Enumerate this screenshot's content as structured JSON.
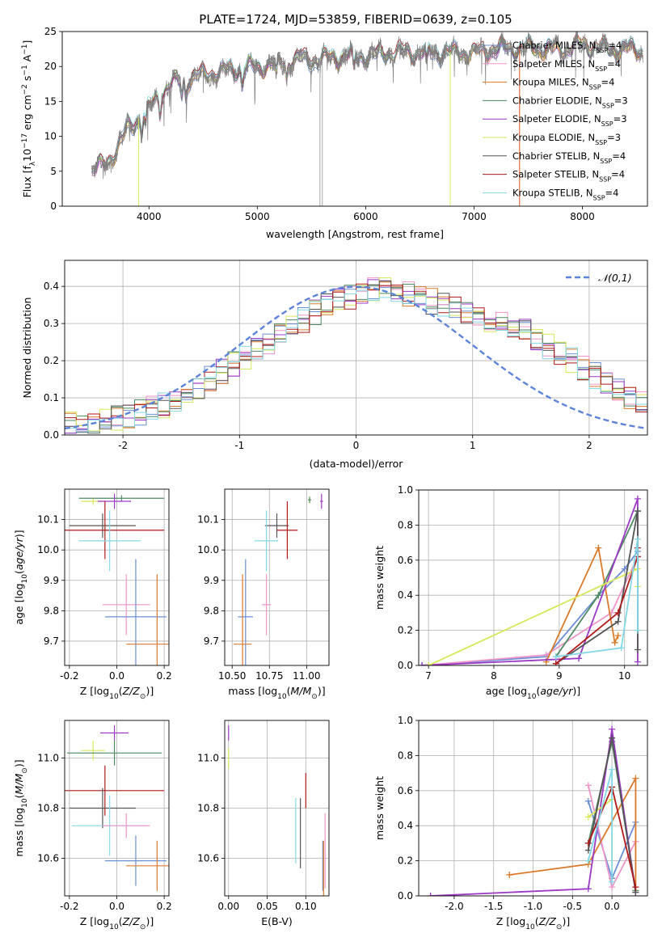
{
  "figure_title": "PLATE=1724, MJD=53859, FIBERID=0639, z=0.105",
  "colors": {
    "chabrier_miles": "#6b8fd6",
    "salpeter_miles": "#ef95c8",
    "kroupa_miles": "#d97a2b",
    "chabrier_elodie": "#4e8a62",
    "salpeter_elodie": "#9b38c4",
    "kroupa_elodie": "#d7e85a",
    "chabrier_stelib": "#555555",
    "salpeter_stelib": "#b01a1a",
    "kroupa_stelib": "#82d8e4",
    "grid": "#b0b0b0",
    "normal_curve": "#5b84d8"
  },
  "chart_data": [
    {
      "id": "spectrum",
      "type": "line",
      "title": "PLATE=1724, MJD=53859, FIBERID=0639, z=0.105",
      "xlabel": "wavelength [Angstrom, rest frame]",
      "ylabel": "Flux [f_λ10^-17 erg cm^-2 s^-1 A^-1]",
      "xlim": [
        3200,
        8600
      ],
      "ylim": [
        0,
        25
      ],
      "xticks": [
        4000,
        5000,
        6000,
        7000,
        8000
      ],
      "yticks": [
        0,
        5,
        10,
        15,
        20,
        25
      ],
      "grid": false,
      "legend_position": "upper-right",
      "data_range": [
        3470,
        8560
      ],
      "continuum": {
        "x": [
          3470,
          3600,
          3700,
          3800,
          3900,
          4000,
          4100,
          4200,
          4300,
          4400,
          4600,
          4800,
          5000,
          5200,
          5400,
          5600,
          5800,
          6000,
          6200,
          6400,
          6600,
          6800,
          7000,
          7200,
          7400,
          7600,
          7800,
          8000,
          8200,
          8400,
          8560
        ],
        "y": [
          5,
          6,
          8,
          11,
          12.5,
          14,
          16,
          17.5,
          18,
          18.5,
          19,
          19.5,
          20,
          20.5,
          21,
          21,
          21.5,
          21.5,
          22,
          22,
          22,
          22,
          22,
          22.5,
          22.5,
          22.5,
          22.5,
          23,
          22.5,
          22.5,
          22
        ]
      },
      "series": [
        {
          "name": "Chabrier MILES, N_SSP=4",
          "color": "#6b8fd6"
        },
        {
          "name": "Salpeter MILES, N_SSP=4",
          "color": "#ef95c8"
        },
        {
          "name": "Kroupa MILES, N_SSP=4",
          "color": "#d97a2b"
        },
        {
          "name": "Chabrier ELODIE, N_SSP=3",
          "color": "#4e8a62"
        },
        {
          "name": "Salpeter ELODIE, N_SSP=3",
          "color": "#9b38c4"
        },
        {
          "name": "Kroupa ELODIE, N_SSP=3",
          "color": "#d7e85a"
        },
        {
          "name": "Chabrier STELIB, N_SSP=4",
          "color": "#555555"
        },
        {
          "name": "Salpeter STELIB, N_SSP=4",
          "color": "#b01a1a"
        },
        {
          "name": "Kroupa STELIB, N_SSP=4",
          "color": "#82d8e4"
        }
      ],
      "vertical_spikes": [
        {
          "x": 5578,
          "color": "#aaaaaa"
        },
        {
          "x": 5600,
          "color": "#aaaaaa"
        },
        {
          "x": 6780,
          "color": "#d7e85a"
        },
        {
          "x": 7420,
          "color": "#d9531a"
        },
        {
          "x": 3905,
          "color": "#d7e85a"
        }
      ]
    },
    {
      "id": "residual_histogram",
      "type": "histogram",
      "xlabel": "(data-model)/error",
      "ylabel": "Normed distribution",
      "xlim": [
        -2.5,
        2.5
      ],
      "ylim": [
        0,
        0.47
      ],
      "xticks": [
        -2,
        -1,
        0,
        1,
        2
      ],
      "yticks": [
        0.0,
        0.1,
        0.2,
        0.3,
        0.4
      ],
      "grid": true,
      "legend_position": "upper-right",
      "legend": [
        "𝒩(0,1)"
      ],
      "bin_width": 0.1,
      "bin_start": -2.5,
      "base_density": [
        0.03,
        0.03,
        0.035,
        0.04,
        0.045,
        0.05,
        0.06,
        0.07,
        0.08,
        0.09,
        0.11,
        0.13,
        0.15,
        0.17,
        0.19,
        0.21,
        0.23,
        0.25,
        0.27,
        0.29,
        0.31,
        0.33,
        0.35,
        0.36,
        0.37,
        0.38,
        0.39,
        0.39,
        0.39,
        0.38,
        0.37,
        0.36,
        0.35,
        0.34,
        0.33,
        0.32,
        0.31,
        0.3,
        0.29,
        0.28,
        0.26,
        0.24,
        0.22,
        0.2,
        0.18,
        0.16,
        0.14,
        0.12,
        0.1,
        0.09
      ]
    },
    {
      "id": "age_vs_Z",
      "type": "scatter-errorbar",
      "xlabel": "Z [log10(Z/Z⊙)]",
      "ylabel": "age [log10(age/yr)]",
      "xlim": [
        -0.22,
        0.22
      ],
      "ylim": [
        9.62,
        10.2
      ],
      "xticks": [
        -0.2,
        0.0,
        0.2
      ],
      "yticks": [
        9.7,
        9.8,
        9.9,
        10.0,
        10.1
      ],
      "grid": true,
      "points": [
        {
          "model": "kroupa_elodie",
          "x": -0.1,
          "xerr": 0.05,
          "y": 10.16,
          "yerr": 0.012
        },
        {
          "model": "chabrier_elodie",
          "x": 0.02,
          "xerr": 0.18,
          "y": 10.17,
          "yerr": 0.01
        },
        {
          "model": "salpeter_elodie",
          "x": -0.01,
          "xerr": 0.07,
          "y": 10.16,
          "yerr": 0.025
        },
        {
          "model": "chabrier_stelib",
          "x": -0.06,
          "xerr": 0.14,
          "y": 10.08,
          "yerr": 0.04
        },
        {
          "model": "salpeter_stelib",
          "x": -0.05,
          "xerr": 0.25,
          "y": 10.065,
          "yerr": 0.095
        },
        {
          "model": "kroupa_stelib",
          "x": -0.03,
          "xerr": 0.13,
          "y": 10.03,
          "yerr": 0.1
        },
        {
          "model": "salpeter_miles",
          "x": 0.04,
          "xerr": 0.1,
          "y": 9.82,
          "yerr": 0.1
        },
        {
          "model": "chabrier_miles",
          "x": 0.08,
          "xerr": 0.13,
          "y": 9.78,
          "yerr": 0.19
        },
        {
          "model": "kroupa_miles",
          "x": 0.17,
          "xerr": 0.13,
          "y": 9.69,
          "yerr": 0.23
        }
      ]
    },
    {
      "id": "age_vs_mass",
      "type": "scatter-errorbar",
      "xlabel": "mass [log10(M/M⊙)]",
      "ylabel": "",
      "xlim": [
        10.45,
        11.15
      ],
      "ylim": [
        9.62,
        10.2
      ],
      "xticks": [
        10.5,
        10.75,
        11.0
      ],
      "yticks": [
        9.7,
        9.8,
        9.9,
        10.0,
        10.1
      ],
      "grid": true,
      "points": [
        {
          "model": "kroupa_elodie",
          "x": 11.02,
          "xerr": 0.01,
          "y": 10.165,
          "yerr": 0.012
        },
        {
          "model": "chabrier_elodie",
          "x": 11.02,
          "xerr": 0.01,
          "y": 10.165,
          "yerr": 0.01
        },
        {
          "model": "salpeter_elodie",
          "x": 11.1,
          "xerr": 0.01,
          "y": 10.16,
          "yerr": 0.025
        },
        {
          "model": "chabrier_stelib",
          "x": 10.8,
          "xerr": 0.08,
          "y": 10.08,
          "yerr": 0.04
        },
        {
          "model": "salpeter_stelib",
          "x": 10.87,
          "xerr": 0.07,
          "y": 10.065,
          "yerr": 0.095
        },
        {
          "model": "kroupa_stelib",
          "x": 10.73,
          "xerr": 0.08,
          "y": 10.03,
          "yerr": 0.1
        },
        {
          "model": "salpeter_miles",
          "x": 10.73,
          "xerr": 0.03,
          "y": 9.82,
          "yerr": 0.1
        },
        {
          "model": "chabrier_miles",
          "x": 10.59,
          "xerr": 0.05,
          "y": 9.78,
          "yerr": 0.19
        },
        {
          "model": "kroupa_miles",
          "x": 10.57,
          "xerr": 0.06,
          "y": 9.69,
          "yerr": 0.23
        }
      ]
    },
    {
      "id": "weight_vs_age",
      "type": "line",
      "xlabel": "age [log10(age/yr)]",
      "ylabel": "mass weight",
      "xlim": [
        6.85,
        10.35
      ],
      "ylim": [
        0,
        1.0
      ],
      "xticks": [
        7,
        8,
        9,
        10
      ],
      "yticks": [
        0.0,
        0.2,
        0.4,
        0.6,
        0.8,
        1.0
      ],
      "grid": true,
      "series": [
        {
          "model": "chabrier_miles",
          "x": [
            6.9,
            8.8,
            9.6,
            10.0,
            10.2
          ],
          "y": [
            0.0,
            0.05,
            0.4,
            0.55,
            0.65
          ]
        },
        {
          "model": "salpeter_miles",
          "x": [
            6.9,
            8.8,
            9.8,
            10.2
          ],
          "y": [
            0.0,
            0.06,
            0.3,
            0.62
          ]
        },
        {
          "model": "kroupa_miles",
          "x": [
            8.8,
            9.6,
            9.85,
            9.9
          ],
          "y": [
            0.02,
            0.67,
            0.13,
            0.17
          ]
        },
        {
          "model": "chabrier_elodie",
          "x": [
            8.95,
            9.6,
            10.2
          ],
          "y": [
            0.05,
            0.4,
            0.88
          ]
        },
        {
          "model": "salpeter_elodie",
          "x": [
            6.9,
            9.3,
            10.2,
            10.2
          ],
          "y": [
            0.0,
            0.04,
            0.95,
            0.02
          ]
        },
        {
          "model": "kroupa_elodie",
          "x": [
            7.0,
            10.2,
            10.2
          ],
          "y": [
            0.0,
            0.55,
            0.45
          ]
        },
        {
          "model": "chabrier_stelib",
          "x": [
            8.95,
            9.9,
            10.2,
            10.2
          ],
          "y": [
            0.01,
            0.25,
            0.88,
            0.09
          ]
        },
        {
          "model": "salpeter_stelib",
          "x": [
            8.95,
            9.9,
            10.2,
            10.2
          ],
          "y": [
            0.01,
            0.3,
            0.62,
            0.67
          ]
        },
        {
          "model": "kroupa_stelib",
          "x": [
            8.95,
            9.95,
            10.2,
            10.2
          ],
          "y": [
            0.05,
            0.1,
            0.72,
            0.2
          ]
        }
      ]
    },
    {
      "id": "mass_vs_Z",
      "type": "scatter-errorbar",
      "xlabel": "Z [log10(Z/Z⊙)]",
      "ylabel": "mass [log10(M/M⊙)]",
      "xlim": [
        -0.22,
        0.22
      ],
      "ylim": [
        10.45,
        11.15
      ],
      "xticks": [
        -0.2,
        0.0,
        0.2
      ],
      "yticks": [
        10.6,
        10.8,
        11.0
      ],
      "grid": true,
      "points": [
        {
          "model": "salpeter_elodie",
          "x": -0.01,
          "xerr": 0.06,
          "y": 11.1,
          "yerr": 0.03
        },
        {
          "model": "kroupa_elodie",
          "x": -0.1,
          "xerr": 0.05,
          "y": 11.03,
          "yerr": 0.04
        },
        {
          "model": "chabrier_elodie",
          "x": -0.01,
          "xerr": 0.2,
          "y": 11.02,
          "yerr": 0.05
        },
        {
          "model": "salpeter_stelib",
          "x": -0.05,
          "xerr": 0.25,
          "y": 10.87,
          "yerr": 0.1
        },
        {
          "model": "chabrier_stelib",
          "x": -0.06,
          "xerr": 0.14,
          "y": 10.8,
          "yerr": 0.08
        },
        {
          "model": "kroupa_stelib",
          "x": -0.03,
          "xerr": 0.16,
          "y": 10.73,
          "yerr": 0.12
        },
        {
          "model": "salpeter_miles",
          "x": 0.04,
          "xerr": 0.1,
          "y": 10.73,
          "yerr": 0.05
        },
        {
          "model": "chabrier_miles",
          "x": 0.08,
          "xerr": 0.13,
          "y": 10.59,
          "yerr": 0.1
        },
        {
          "model": "kroupa_miles",
          "x": 0.17,
          "xerr": 0.13,
          "y": 10.57,
          "yerr": 0.1
        }
      ]
    },
    {
      "id": "mass_vs_EBV",
      "type": "scatter-errorbar",
      "xlabel": "E(B-V)",
      "ylabel": "",
      "xlim": [
        -0.005,
        0.13
      ],
      "ylim": [
        10.45,
        11.15
      ],
      "xticks": [
        0.0,
        0.05,
        0.1
      ],
      "yticks": [
        10.6,
        10.8,
        11.0
      ],
      "grid": true,
      "points": [
        {
          "model": "salpeter_elodie",
          "x": 0.0,
          "xerr": 0,
          "y": 11.1,
          "yerr": 0.03
        },
        {
          "model": "kroupa_elodie",
          "x": 0.0,
          "xerr": 0,
          "y": 11.0,
          "yerr": 0.04
        },
        {
          "model": "salpeter_stelib",
          "x": 0.1,
          "xerr": 0,
          "y": 10.87,
          "yerr": 0.07
        },
        {
          "model": "chabrier_stelib",
          "x": 0.093,
          "xerr": 0,
          "y": 10.7,
          "yerr": 0.14
        },
        {
          "model": "kroupa_stelib",
          "x": 0.087,
          "xerr": 0,
          "y": 10.71,
          "yerr": 0.13
        },
        {
          "model": "salpeter_miles",
          "x": 0.125,
          "xerr": 0,
          "y": 10.63,
          "yerr": 0.15
        },
        {
          "model": "chabrier_miles",
          "x": 0.122,
          "xerr": 0,
          "y": 10.57,
          "yerr": 0.1
        },
        {
          "model": "kroupa_miles",
          "x": 0.123,
          "xerr": 0,
          "y": 10.56,
          "yerr": 0.11
        }
      ]
    },
    {
      "id": "weight_vs_Z",
      "type": "line",
      "xlabel": "Z [log10(Z/Z⊙)]",
      "ylabel": "mass weight",
      "xlim": [
        -2.45,
        0.45
      ],
      "ylim": [
        0,
        1.0
      ],
      "xticks": [
        -2.0,
        -1.5,
        -1.0,
        -0.5,
        0.0
      ],
      "yticks": [
        0.0,
        0.2,
        0.4,
        0.6,
        0.8,
        1.0
      ],
      "grid": true,
      "series": [
        {
          "model": "chabrier_miles",
          "x": [
            -0.3,
            0.0,
            0.3
          ],
          "y": [
            0.54,
            0.1,
            0.42
          ]
        },
        {
          "model": "salpeter_miles",
          "x": [
            -0.3,
            0.0,
            0.3
          ],
          "y": [
            0.63,
            0.05,
            0.31
          ]
        },
        {
          "model": "kroupa_miles",
          "x": [
            -1.3,
            -0.3,
            0.3,
            0.3
          ],
          "y": [
            0.12,
            0.18,
            0.67,
            0.03
          ]
        },
        {
          "model": "chabrier_elodie",
          "x": [
            -0.3,
            0.0,
            0.3
          ],
          "y": [
            0.3,
            0.88,
            0.03
          ]
        },
        {
          "model": "salpeter_elodie",
          "x": [
            -2.3,
            -0.3,
            0.0,
            0.3
          ],
          "y": [
            0.0,
            0.04,
            0.95,
            0.02
          ]
        },
        {
          "model": "kroupa_elodie",
          "x": [
            -0.3,
            0.0
          ],
          "y": [
            0.45,
            0.55
          ]
        },
        {
          "model": "chabrier_stelib",
          "x": [
            -0.3,
            0.0,
            0.3
          ],
          "y": [
            0.26,
            0.9,
            0.02
          ]
        },
        {
          "model": "salpeter_stelib",
          "x": [
            -0.3,
            0.0,
            0.3
          ],
          "y": [
            0.3,
            0.62,
            0.05
          ]
        },
        {
          "model": "kroupa_stelib",
          "x": [
            -0.3,
            0.0,
            0.0
          ],
          "y": [
            0.2,
            0.72,
            0.08
          ]
        }
      ]
    }
  ]
}
